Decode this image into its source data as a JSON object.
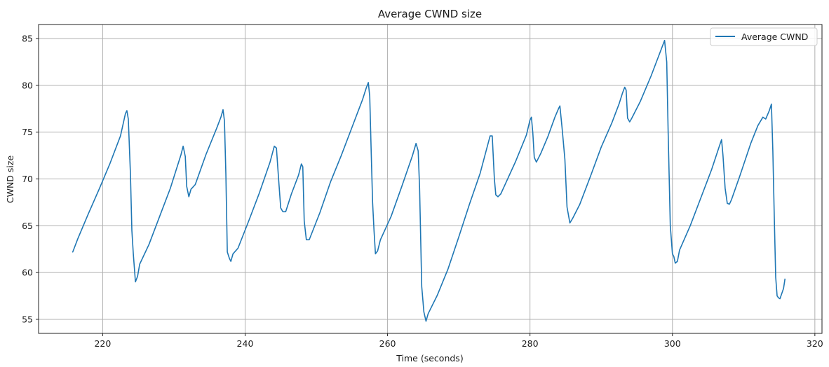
{
  "chart_data": {
    "type": "line",
    "title": "Average CWND size",
    "xlabel": "Time (seconds)",
    "ylabel": "CWND size",
    "xlim": [
      211,
      321
    ],
    "ylim": [
      53.5,
      86.5
    ],
    "xticks": [
      220,
      240,
      260,
      280,
      300,
      320
    ],
    "yticks": [
      55,
      60,
      65,
      70,
      75,
      80,
      85
    ],
    "grid": true,
    "legend_position": "top-right",
    "series": [
      {
        "name": "Average CWND",
        "color": "#1f77b4",
        "points": [
          [
            215.8,
            62.2
          ],
          [
            216.5,
            63.6
          ],
          [
            218.0,
            66.3
          ],
          [
            219.5,
            68.9
          ],
          [
            221.0,
            71.6
          ],
          [
            222.5,
            74.6
          ],
          [
            223.2,
            77.0
          ],
          [
            223.4,
            77.3
          ],
          [
            223.6,
            76.4
          ],
          [
            223.9,
            70.5
          ],
          [
            224.1,
            64.5
          ],
          [
            224.3,
            62.0
          ],
          [
            224.6,
            59.0
          ],
          [
            224.9,
            59.6
          ],
          [
            225.2,
            60.9
          ],
          [
            226.5,
            63.0
          ],
          [
            228.0,
            66.0
          ],
          [
            229.5,
            69.0
          ],
          [
            231.0,
            72.6
          ],
          [
            231.3,
            73.5
          ],
          [
            231.6,
            72.4
          ],
          [
            231.8,
            69.2
          ],
          [
            232.1,
            68.1
          ],
          [
            232.4,
            68.9
          ],
          [
            233.0,
            69.4
          ],
          [
            234.5,
            72.6
          ],
          [
            236.0,
            75.4
          ],
          [
            236.6,
            76.6
          ],
          [
            236.9,
            77.4
          ],
          [
            237.1,
            76.2
          ],
          [
            237.3,
            70.5
          ],
          [
            237.5,
            62.2
          ],
          [
            237.8,
            61.5
          ],
          [
            238.0,
            61.2
          ],
          [
            238.3,
            62.0
          ],
          [
            239.0,
            62.6
          ],
          [
            240.5,
            65.5
          ],
          [
            242.0,
            68.5
          ],
          [
            243.5,
            71.8
          ],
          [
            244.1,
            73.5
          ],
          [
            244.4,
            73.3
          ],
          [
            244.7,
            70.0
          ],
          [
            245.0,
            66.9
          ],
          [
            245.3,
            66.5
          ],
          [
            245.7,
            66.5
          ],
          [
            246.5,
            68.4
          ],
          [
            247.5,
            70.4
          ],
          [
            247.9,
            71.6
          ],
          [
            248.1,
            71.3
          ],
          [
            248.3,
            65.5
          ],
          [
            248.6,
            63.5
          ],
          [
            249.0,
            63.5
          ],
          [
            250.5,
            66.4
          ],
          [
            252.0,
            69.7
          ],
          [
            253.5,
            72.5
          ],
          [
            255.0,
            75.5
          ],
          [
            256.5,
            78.5
          ],
          [
            257.0,
            79.7
          ],
          [
            257.3,
            80.3
          ],
          [
            257.5,
            78.8
          ],
          [
            257.7,
            73.0
          ],
          [
            257.9,
            67.5
          ],
          [
            258.1,
            64.5
          ],
          [
            258.3,
            62.0
          ],
          [
            258.6,
            62.3
          ],
          [
            259.0,
            63.5
          ],
          [
            260.5,
            66.0
          ],
          [
            262.0,
            69.2
          ],
          [
            263.5,
            72.5
          ],
          [
            264.0,
            73.8
          ],
          [
            264.3,
            73.0
          ],
          [
            264.5,
            69.0
          ],
          [
            264.8,
            58.5
          ],
          [
            265.1,
            55.8
          ],
          [
            265.4,
            54.8
          ],
          [
            265.7,
            55.6
          ],
          [
            267.0,
            57.6
          ],
          [
            268.5,
            60.4
          ],
          [
            270.0,
            63.8
          ],
          [
            271.5,
            67.3
          ],
          [
            273.0,
            70.6
          ],
          [
            274.4,
            74.6
          ],
          [
            274.7,
            74.6
          ],
          [
            275.0,
            70.0
          ],
          [
            275.2,
            68.3
          ],
          [
            275.5,
            68.1
          ],
          [
            275.9,
            68.4
          ],
          [
            276.5,
            69.4
          ],
          [
            278.0,
            71.9
          ],
          [
            279.5,
            74.7
          ],
          [
            280.0,
            76.3
          ],
          [
            280.2,
            76.6
          ],
          [
            280.4,
            74.9
          ],
          [
            280.6,
            72.3
          ],
          [
            280.9,
            71.8
          ],
          [
            281.5,
            72.7
          ],
          [
            282.5,
            74.5
          ],
          [
            283.5,
            76.6
          ],
          [
            284.0,
            77.5
          ],
          [
            284.2,
            77.8
          ],
          [
            284.5,
            75.5
          ],
          [
            284.9,
            72.1
          ],
          [
            285.2,
            67.0
          ],
          [
            285.6,
            65.3
          ],
          [
            286.0,
            65.8
          ],
          [
            287.0,
            67.3
          ],
          [
            288.5,
            70.3
          ],
          [
            290.0,
            73.4
          ],
          [
            291.5,
            76.0
          ],
          [
            292.5,
            78.0
          ],
          [
            293.0,
            79.2
          ],
          [
            293.3,
            79.8
          ],
          [
            293.5,
            79.5
          ],
          [
            293.7,
            76.5
          ],
          [
            294.0,
            76.1
          ],
          [
            294.3,
            76.5
          ],
          [
            295.5,
            78.3
          ],
          [
            297.0,
            81.0
          ],
          [
            298.0,
            83.0
          ],
          [
            298.7,
            84.4
          ],
          [
            298.9,
            84.8
          ],
          [
            299.2,
            82.5
          ],
          [
            299.4,
            75.0
          ],
          [
            299.7,
            65.0
          ],
          [
            300.0,
            62.0
          ],
          [
            300.2,
            61.7
          ],
          [
            300.4,
            61.0
          ],
          [
            300.7,
            61.2
          ],
          [
            301.0,
            62.4
          ],
          [
            302.5,
            65.0
          ],
          [
            304.0,
            68.0
          ],
          [
            305.5,
            71.0
          ],
          [
            306.5,
            73.3
          ],
          [
            306.9,
            74.2
          ],
          [
            307.1,
            72.5
          ],
          [
            307.4,
            69.0
          ],
          [
            307.7,
            67.4
          ],
          [
            308.0,
            67.3
          ],
          [
            308.3,
            67.8
          ],
          [
            309.5,
            70.4
          ],
          [
            311.0,
            73.8
          ],
          [
            312.0,
            75.7
          ],
          [
            312.7,
            76.6
          ],
          [
            313.1,
            76.4
          ],
          [
            313.6,
            77.3
          ],
          [
            313.9,
            78.0
          ],
          [
            314.1,
            73.0
          ],
          [
            314.3,
            66.0
          ],
          [
            314.5,
            59.5
          ],
          [
            314.7,
            57.5
          ],
          [
            314.9,
            57.3
          ],
          [
            315.1,
            57.2
          ],
          [
            315.6,
            58.3
          ],
          [
            315.8,
            59.3
          ]
        ]
      }
    ]
  }
}
